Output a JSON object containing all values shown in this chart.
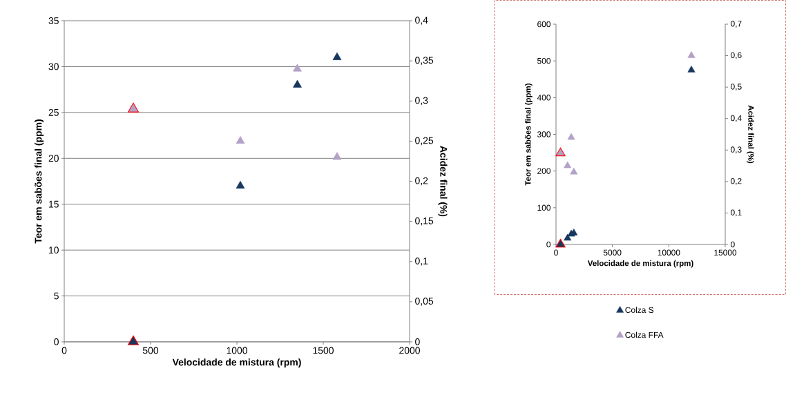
{
  "chart_data": [
    {
      "type": "scatter",
      "xlabel": "Velocidade de mistura (rpm)",
      "ylabel": "Teor em sabões final (ppm)",
      "y2label": "Acidez final (%)",
      "xlim": [
        0,
        2000
      ],
      "xticks": [
        0,
        500,
        1000,
        1500,
        2000
      ],
      "ylim": [
        0,
        35
      ],
      "yticks": [
        0,
        5,
        10,
        15,
        20,
        25,
        30,
        35
      ],
      "y2lim": [
        0,
        0.4
      ],
      "y2ticks": [
        0,
        {
          "value": 0.05,
          "label": "0,05"
        },
        {
          "value": 0.1,
          "label": "0,1"
        },
        {
          "value": 0.15,
          "label": "0,15"
        },
        {
          "value": 0.2,
          "label": "0,2"
        },
        {
          "value": 0.25,
          "label": "0,25"
        },
        {
          "value": 0.3,
          "label": "0,3"
        },
        {
          "value": 0.35,
          "label": "0,35"
        },
        {
          "value": 0.4,
          "label": "0,4"
        }
      ],
      "grid": "y",
      "marker": "triangle",
      "series": [
        {
          "color": "#ff0000",
          "axis": "y",
          "x": [
            400
          ],
          "values": [
            0
          ]
        },
        {
          "color": "#ff0000",
          "axis": "y2",
          "x": [
            400
          ],
          "values": [
            0.29
          ]
        },
        {
          "color": "#17375e",
          "axis": "y",
          "x": [
            400,
            1020,
            1350,
            1580
          ],
          "values": [
            0,
            17,
            28,
            31
          ]
        },
        {
          "color": "#b3a2c7",
          "axis": "y2",
          "x": [
            400,
            1020,
            1350,
            1580
          ],
          "values": [
            0.29,
            0.25,
            0.34,
            0.23
          ]
        }
      ]
    },
    {
      "type": "scatter",
      "xlabel": "Velocidade de mistura (rpm)",
      "ylabel": "Teor em sabões final (ppm)",
      "y2label": "Acidez final (%)",
      "xlim": [
        0,
        15000
      ],
      "xticks": [
        0,
        5000,
        10000,
        15000
      ],
      "ylim": [
        0,
        600
      ],
      "yticks": [
        0,
        100,
        200,
        300,
        400,
        500,
        600
      ],
      "y2lim": [
        0,
        0.7
      ],
      "y2ticks": [
        0,
        {
          "value": 0.1,
          "label": "0,1"
        },
        {
          "value": 0.2,
          "label": "0,2"
        },
        {
          "value": 0.3,
          "label": "0,3"
        },
        {
          "value": 0.4,
          "label": "0,4"
        },
        {
          "value": 0.5,
          "label": "0,5"
        },
        {
          "value": 0.6,
          "label": "0,6"
        },
        {
          "value": 0.7,
          "label": "0,7"
        }
      ],
      "grid": false,
      "legend": "bottom",
      "marker": "triangle",
      "series": [
        {
          "color": "#ff0000",
          "axis": "y",
          "x": [
            400
          ],
          "values": [
            0
          ]
        },
        {
          "color": "#ff0000",
          "axis": "y2",
          "x": [
            400
          ],
          "values": [
            0.29
          ]
        },
        {
          "name": "Colza S",
          "color": "#17375e",
          "axis": "y",
          "x": [
            400,
            1020,
            1350,
            1580,
            12000
          ],
          "values": [
            0,
            17,
            28,
            31,
            475
          ]
        },
        {
          "name": "Colza FFA",
          "color": "#b3a2c7",
          "axis": "y2",
          "x": [
            400,
            1020,
            1350,
            1580,
            12000
          ],
          "values": [
            0.29,
            0.25,
            0.34,
            0.23,
            0.6
          ]
        }
      ]
    }
  ]
}
